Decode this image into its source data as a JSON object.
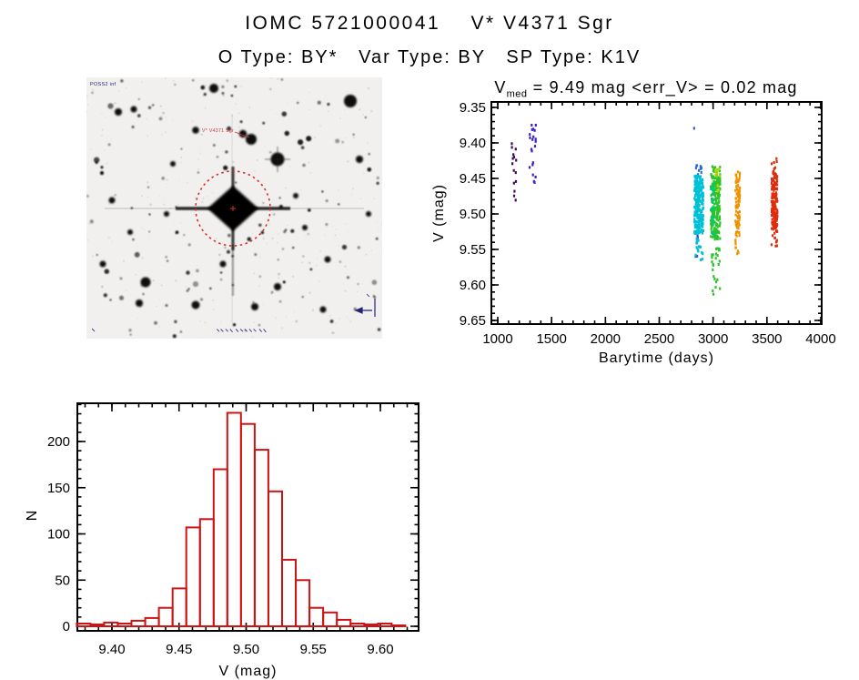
{
  "page": {
    "title": "IOMC 5721000041    V* V4371 Sgr",
    "subtitle": "O Type: BY*   Var Type: BY   SP Type: K1V"
  },
  "finder_chart": {
    "survey_label": "POSS2 inf",
    "target_label": "V* V4371 Sgr",
    "circle_color": "#d23030",
    "annotation_color": "#23237a"
  },
  "chart_data": [
    {
      "type": "scatter",
      "title_v": "V",
      "title_sub": "med",
      "title_rest": " = 9.49 mag <err_V> = 0.02 mag",
      "xlabel": "Barytime (days)",
      "ylabel": "V (mag)",
      "xlim": [
        940,
        4010
      ],
      "ylim": [
        9.66,
        9.34
      ],
      "y_inverted": true,
      "xticks": [
        1000,
        1500,
        2000,
        2500,
        3000,
        3500,
        4000
      ],
      "yticks": [
        9.35,
        9.4,
        9.45,
        9.5,
        9.55,
        9.6,
        9.65
      ],
      "x_minor_step": 100,
      "y_minor_step": 0.01,
      "grid": false,
      "point_color_meaning": "observation epoch (rainbow: violet=early, red=late)",
      "clusters": [
        {
          "name": "epoch1-violet",
          "color": "#3c0d56",
          "x": 1150,
          "xspread": 42,
          "segments": [
            [
              9.4,
              9.409,
              3
            ],
            [
              9.414,
              9.433,
              5
            ],
            [
              9.437,
              9.457,
              4
            ],
            [
              9.465,
              9.481,
              3
            ]
          ]
        },
        {
          "name": "epoch2-indigo",
          "color": "#3a22c8",
          "x": 1325,
          "xspread": 60,
          "segments": [
            [
              9.374,
              9.386,
              5
            ],
            [
              9.388,
              9.412,
              9
            ],
            [
              9.42,
              9.438,
              3
            ],
            [
              9.443,
              9.459,
              4
            ]
          ]
        },
        {
          "name": "outlier-blue",
          "color": "#2f55d8",
          "x": 2820,
          "xspread": 10,
          "segments": [
            [
              9.379,
              9.383,
              1
            ]
          ]
        },
        {
          "name": "blue-low-group",
          "color": "#1e50d0",
          "x": 2852,
          "xspread": 30,
          "segments": [
            [
              9.527,
              9.543,
              3
            ],
            [
              9.55,
              9.561,
              2
            ]
          ]
        },
        {
          "name": "epoch3-blue-top",
          "color": "#2e6ada",
          "x": 2866,
          "xspread": 60,
          "segments": [
            [
              9.431,
              9.448,
              12
            ]
          ]
        },
        {
          "name": "epoch3-cyan",
          "color": "#00c0d8",
          "x": 2868,
          "xspread": 82,
          "segments": [
            [
              9.446,
              9.46,
              30
            ],
            [
              9.455,
              9.528,
              200
            ],
            [
              9.528,
              9.556,
              14
            ],
            [
              9.558,
              9.566,
              3
            ]
          ]
        },
        {
          "name": "epoch4-green",
          "color": "#2ec32a",
          "x": 3022,
          "xspread": 88,
          "segments": [
            [
              9.431,
              9.448,
              16
            ],
            [
              9.448,
              9.536,
              205
            ],
            [
              9.536,
              9.574,
              16
            ],
            [
              9.578,
              9.615,
              9
            ]
          ]
        },
        {
          "name": "epoch4-teal-edge",
          "color": "#00c882",
          "x": 2995,
          "xspread": 30,
          "segments": [
            [
              9.455,
              9.53,
              25
            ]
          ]
        },
        {
          "name": "epoch4-yellowgreen",
          "color": "#a8d800",
          "x": 3040,
          "xspread": 45,
          "segments": [
            [
              9.436,
              9.456,
              9
            ],
            [
              9.458,
              9.474,
              4
            ]
          ]
        },
        {
          "name": "epoch5-orange",
          "color": "#f09200",
          "x": 3228,
          "xspread": 42,
          "segments": [
            [
              9.437,
              9.447,
              5
            ],
            [
              9.449,
              9.533,
              95
            ],
            [
              9.536,
              9.558,
              8
            ]
          ]
        },
        {
          "name": "epoch6-red",
          "color": "#e02c0c",
          "x": 3570,
          "xspread": 54,
          "segments": [
            [
              9.419,
              9.431,
              4
            ],
            [
              9.434,
              9.448,
              12
            ],
            [
              9.448,
              9.524,
              160
            ],
            [
              9.524,
              9.549,
              12
            ]
          ]
        }
      ]
    },
    {
      "type": "bar",
      "title": "",
      "xlabel": "V (mag)",
      "ylabel": "N",
      "bin_start": 9.3738,
      "bin_width": 0.0102,
      "counts": [
        3,
        2,
        4,
        3,
        6,
        9,
        20,
        41,
        107,
        116,
        170,
        231,
        219,
        191,
        146,
        72,
        50,
        20,
        15,
        7,
        3,
        2,
        3,
        1
      ],
      "color": "#cc1414",
      "xticks": [
        9.4,
        9.45,
        9.5,
        9.55,
        9.6
      ],
      "yticks": [
        0,
        50,
        100,
        150,
        200
      ],
      "x_minor_step": 0.01,
      "y_minor_step": 10,
      "xlim": [
        9.372,
        9.6285
      ],
      "ylim": [
        -5,
        241
      ],
      "grid": false
    }
  ]
}
